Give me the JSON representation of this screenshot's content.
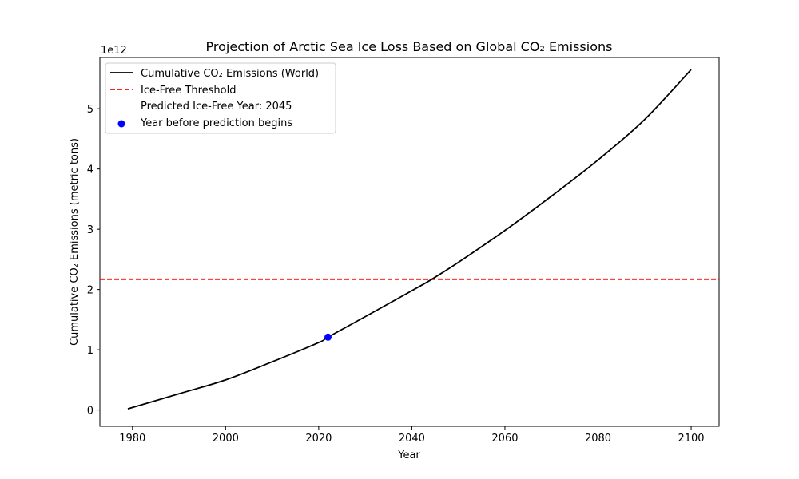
{
  "chart_data": {
    "type": "line",
    "title": "Projection of Arctic Sea Ice Loss Based on Global CO₂ Emissions",
    "xlabel": "Year",
    "ylabel": "Cumulative CO₂ Emissions (metric tons)",
    "y_offset_label": "1e12",
    "xlim": [
      1973,
      2106
    ],
    "ylim": [
      -0.27,
      5.85
    ],
    "x_ticks": [
      1980,
      2000,
      2020,
      2040,
      2060,
      2080,
      2100
    ],
    "y_ticks": [
      0,
      1,
      2,
      3,
      4,
      5
    ],
    "y_units": "1e12 metric tons",
    "series": [
      {
        "name": "Cumulative CO₂ Emissions (World)",
        "style": "solid",
        "color": "#000000",
        "x": [
          1979,
          1990,
          2000,
          2010,
          2020,
          2022,
          2030,
          2040,
          2044.3,
          2050,
          2060,
          2070,
          2080,
          2090,
          2100
        ],
        "y": [
          0.02,
          0.27,
          0.5,
          0.8,
          1.12,
          1.21,
          1.55,
          1.98,
          2.17,
          2.45,
          2.98,
          3.55,
          4.15,
          4.82,
          5.65
        ]
      },
      {
        "name": "Ice-Free Threshold",
        "style": "dashed",
        "color": "#ff0000",
        "type": "hline",
        "y": 2.17
      },
      {
        "name": "Predicted Ice-Free Year: 2045",
        "style": "none",
        "type": "legend-only"
      },
      {
        "name": "Year before prediction begins",
        "style": "marker",
        "color": "#0000ff",
        "type": "scatter",
        "x": [
          2022
        ],
        "y": [
          1.21
        ]
      }
    ],
    "legend_position": "top-left",
    "grid": false
  }
}
